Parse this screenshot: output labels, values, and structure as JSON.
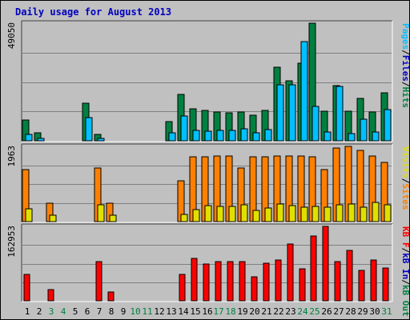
{
  "chart_data": {
    "type": "bar",
    "title": "Daily usage for August 2013",
    "categories": [
      "1",
      "2",
      "3",
      "4",
      "5",
      "6",
      "7",
      "8",
      "9",
      "10",
      "11",
      "12",
      "13",
      "14",
      "15",
      "16",
      "17",
      "18",
      "19",
      "20",
      "21",
      "22",
      "23",
      "24",
      "25",
      "26",
      "27",
      "28",
      "29",
      "30",
      "31"
    ],
    "weekend_days": [
      "3",
      "4",
      "10",
      "11",
      "17",
      "18",
      "24",
      "25",
      "31"
    ],
    "panels": [
      {
        "id": "hits",
        "max_label": "49050",
        "ylim": [
          0,
          49050
        ],
        "legend": [
          {
            "text": "Pages",
            "color": "#00c0ff"
          },
          {
            "text": "/",
            "color": "#000000"
          },
          {
            "text": "Files",
            "color": "#0000c0"
          },
          {
            "text": "/",
            "color": "#000000"
          },
          {
            "text": "Hits",
            "color": "#008040"
          }
        ],
        "series": [
          {
            "name": "Hits",
            "color": "#008040",
            "values": [
              8800,
              3200,
              0,
              0,
              0,
              15600,
              2700,
              0,
              0,
              0,
              0,
              0,
              7900,
              19200,
              13300,
              12800,
              12100,
              11800,
              11900,
              10800,
              12700,
              30600,
              25100,
              32500,
              49050,
              12200,
              23100,
              12300,
              17600,
              11900,
              19900
            ]
          },
          {
            "name": "Pages",
            "color": "#00c0ff",
            "values": [
              2800,
              1100,
              0,
              0,
              0,
              9600,
              1000,
              0,
              0,
              0,
              0,
              0,
              3200,
              10500,
              4200,
              4100,
              4300,
              4400,
              4900,
              3300,
              4600,
              23200,
              23200,
              41300,
              14200,
              3800,
              22600,
              3100,
              9000,
              3700,
              13100
            ]
          }
        ]
      },
      {
        "id": "visits",
        "max_label": "1963",
        "ylim": [
          0,
          1963
        ],
        "legend": [
          {
            "text": "Visits",
            "color": "#e0e000"
          },
          {
            "text": "/",
            "color": "#000000"
          },
          {
            "text": "Sites",
            "color": "#ff8000"
          }
        ],
        "series": [
          {
            "name": "Sites",
            "color": "#ff8000",
            "values": [
              1350,
              0,
              470,
              0,
              0,
              0,
              1400,
              480,
              0,
              0,
              0,
              0,
              0,
              1060,
              1700,
              1690,
              1720,
              1720,
              1390,
              1690,
              1700,
              1720,
              1720,
              1710,
              1690,
              1360,
              1920,
              1960,
              1860,
              1710,
              1550
            ]
          },
          {
            "name": "Visits",
            "color": "#e0e000",
            "values": [
              340,
              0,
              170,
              0,
              0,
              0,
              430,
              170,
              0,
              0,
              0,
              0,
              0,
              180,
              320,
              420,
              390,
              400,
              430,
              300,
              350,
              460,
              410,
              380,
              400,
              370,
              430,
              460,
              380,
              510,
              440
            ]
          }
        ]
      },
      {
        "id": "kb",
        "max_label": "162953",
        "ylim": [
          0,
          162953
        ],
        "legend": [
          {
            "text": "KB F",
            "color": "#ff0000"
          },
          {
            "text": "/",
            "color": "#000000"
          },
          {
            "text": "kB In",
            "color": "#0000c0"
          },
          {
            "text": "/",
            "color": "#000000"
          },
          {
            "text": "kB Out",
            "color": "#008040"
          }
        ],
        "series": [
          {
            "name": "KB F",
            "color": "#ff0000",
            "values": [
              57900,
              0,
              24400,
              0,
              0,
              0,
              86400,
              19900,
              0,
              0,
              0,
              0,
              0,
              57900,
              92900,
              80100,
              85200,
              85900,
              86000,
              53300,
              82000,
              88700,
              124800,
              70700,
              141600,
              162953,
              85200,
              110400,
              66300,
              90100,
              72700
            ]
          }
        ]
      }
    ]
  }
}
